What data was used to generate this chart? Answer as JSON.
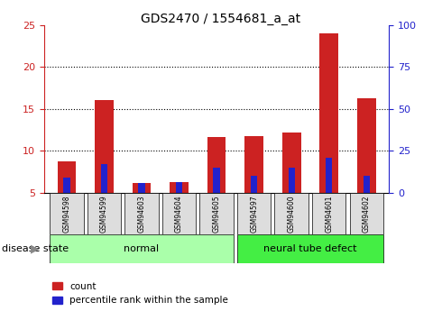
{
  "title": "GDS2470 / 1554681_a_at",
  "samples": [
    "GSM94598",
    "GSM94599",
    "GSM94603",
    "GSM94604",
    "GSM94605",
    "GSM94597",
    "GSM94600",
    "GSM94601",
    "GSM94602"
  ],
  "count_values": [
    8.8,
    16.1,
    6.2,
    6.3,
    11.6,
    11.8,
    12.2,
    24.0,
    16.3
  ],
  "percentile_values": [
    6.8,
    8.4,
    6.2,
    6.3,
    8.0,
    7.0,
    8.0,
    9.2,
    7.0
  ],
  "ymin": 5,
  "ymax": 25,
  "yticks": [
    5,
    10,
    15,
    20,
    25
  ],
  "right_yticks": [
    0,
    25,
    50,
    75,
    100
  ],
  "bar_color_red": "#cc2222",
  "bar_color_blue": "#2222cc",
  "bar_width": 0.5,
  "groups": [
    {
      "label": "normal",
      "indices": [
        0,
        1,
        2,
        3,
        4
      ],
      "color": "#aaffaa"
    },
    {
      "label": "neural tube defect",
      "indices": [
        5,
        6,
        7,
        8
      ],
      "color": "#44ee44"
    }
  ],
  "ylabel_color_left": "#cc2222",
  "ylabel_color_right": "#2222cc",
  "tick_label_bg": "#dddddd",
  "disease_state_label": "disease state",
  "legend_count": "count",
  "legend_percentile": "percentile rank within the sample",
  "grid_lines": [
    10,
    15,
    20
  ]
}
